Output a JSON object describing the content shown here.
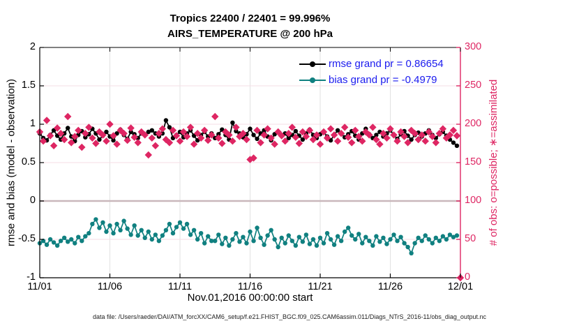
{
  "title": {
    "line1": "Tropics 22400 / 22401 = 99.996%",
    "line2": "AIRS_TEMPERATURE @ 200 hPa"
  },
  "legend": {
    "items": [
      {
        "label": "rmse grand pr = 0.86654",
        "color": "#000000",
        "marker": "circle"
      },
      {
        "label": "bias grand pr = -0.4979",
        "color": "#108080",
        "marker": "circle"
      }
    ],
    "text_color": "#1b1bef"
  },
  "footer": {
    "label": "data file: /Users/raeder/DAI/ATM_forcXX/CAM6_setup/f.e21.FHIST_BGC.f09_025.CAM6assim.011/Diags_NTrS_2016-11/obs_diag_output.nc"
  },
  "colors": {
    "crimson": "#de2663",
    "teal": "#108080",
    "black": "#000000",
    "legend_blue": "#1b1bef",
    "grid_vertical": "#e2e2e2",
    "grid_horizontal": "#f6dee6",
    "zero_line": "#c9b7bb"
  },
  "chart_data": {
    "type": "line",
    "title": "Tropics 22400 / 22401 = 99.996%",
    "subtitle": "AIRS_TEMPERATURE @ 200 hPa",
    "xlabel": "Nov.01,2016 00:00:00 start",
    "ylabel_left": "rmse and bias (model - observation)",
    "ylabel_right": "# of obs: o=possible; ∗=assimilated",
    "grid": true,
    "legend_position": "top-right-inside",
    "xlim_days": [
      0,
      30
    ],
    "ylim_left": [
      -1,
      2
    ],
    "ylim_right": [
      0,
      300
    ],
    "xticks": {
      "days": [
        0,
        5,
        10,
        15,
        20,
        25,
        30
      ],
      "labels": [
        "11/01",
        "11/06",
        "11/11",
        "11/16",
        "11/21",
        "11/26",
        "12/01"
      ]
    },
    "yticks_left": {
      "values": [
        -1,
        -0.5,
        0,
        0.5,
        1,
        1.5,
        2
      ],
      "labels": [
        "-1",
        "-0.5",
        "0",
        "0.5",
        "1",
        "1.5",
        "2"
      ]
    },
    "yticks_right": {
      "values": [
        0,
        50,
        100,
        150,
        200,
        250,
        300
      ],
      "labels": [
        "0",
        "50",
        "100",
        "150",
        "200",
        "250",
        "300"
      ]
    },
    "zero_line_value": 0,
    "time_start_day": 0,
    "time_step_days": 0.25,
    "series": [
      {
        "name": "rmse grand pr = 0.86654",
        "axis": "left",
        "marker": "circle",
        "line": true,
        "color": "#000000",
        "values": [
          0.88,
          0.82,
          0.79,
          0.86,
          0.92,
          0.85,
          0.8,
          0.88,
          0.95,
          0.84,
          0.78,
          0.86,
          0.91,
          0.83,
          0.87,
          0.94,
          0.88,
          0.8,
          0.85,
          0.9,
          0.84,
          0.79,
          0.88,
          0.93,
          0.86,
          0.81,
          0.9,
          0.87,
          0.82,
          0.88,
          0.86,
          0.9,
          0.92,
          0.88,
          0.84,
          0.88,
          1.05,
          0.96,
          0.82,
          0.86,
          0.9,
          0.83,
          0.88,
          0.92,
          0.85,
          0.79,
          0.86,
          0.9,
          0.84,
          0.88,
          0.82,
          0.87,
          0.93,
          0.86,
          0.8,
          1.02,
          0.91,
          0.88,
          0.83,
          0.87,
          0.94,
          0.86,
          0.81,
          0.88,
          0.92,
          0.84,
          0.79,
          0.87,
          0.9,
          0.85,
          0.88,
          0.82,
          0.86,
          0.91,
          0.85,
          0.8,
          0.88,
          0.93,
          0.86,
          0.82,
          0.87,
          0.9,
          0.84,
          0.79,
          0.86,
          0.92,
          0.88,
          0.83,
          0.87,
          0.91,
          0.85,
          0.8,
          0.88,
          0.94,
          0.87,
          0.82,
          0.86,
          0.9,
          0.84,
          0.88,
          0.92,
          0.86,
          0.81,
          0.87,
          0.91,
          0.85,
          0.8,
          0.86,
          0.89,
          0.84,
          0.88,
          0.92,
          0.86,
          0.82,
          0.87,
          0.9,
          0.85,
          0.8,
          0.76,
          0.72
        ]
      },
      {
        "name": "bias grand pr = -0.4979",
        "axis": "left",
        "marker": "circle",
        "line": true,
        "color": "#108080",
        "values": [
          -0.55,
          -0.52,
          -0.57,
          -0.5,
          -0.54,
          -0.58,
          -0.52,
          -0.48,
          -0.53,
          -0.5,
          -0.55,
          -0.47,
          -0.52,
          -0.46,
          -0.42,
          -0.3,
          -0.24,
          -0.35,
          -0.28,
          -0.4,
          -0.32,
          -0.42,
          -0.3,
          -0.38,
          -0.26,
          -0.36,
          -0.44,
          -0.32,
          -0.45,
          -0.38,
          -0.48,
          -0.4,
          -0.5,
          -0.44,
          -0.52,
          -0.45,
          -0.38,
          -0.3,
          -0.42,
          -0.34,
          -0.28,
          -0.36,
          -0.3,
          -0.44,
          -0.38,
          -0.5,
          -0.42,
          -0.55,
          -0.46,
          -0.52,
          -0.52,
          -0.44,
          -0.56,
          -0.48,
          -0.58,
          -0.5,
          -0.42,
          -0.53,
          -0.47,
          -0.55,
          -0.4,
          -0.52,
          -0.35,
          -0.48,
          -0.57,
          -0.45,
          -0.38,
          -0.5,
          -0.6,
          -0.48,
          -0.55,
          -0.45,
          -0.52,
          -0.58,
          -0.47,
          -0.53,
          -0.44,
          -0.56,
          -0.5,
          -0.58,
          -0.48,
          -0.55,
          -0.42,
          -0.5,
          -0.57,
          -0.46,
          -0.52,
          -0.4,
          -0.35,
          -0.45,
          -0.5,
          -0.43,
          -0.55,
          -0.47,
          -0.52,
          -0.58,
          -0.46,
          -0.53,
          -0.48,
          -0.56,
          -0.5,
          -0.44,
          -0.52,
          -0.47,
          -0.55,
          -0.6,
          -0.68,
          -0.55,
          -0.48,
          -0.52,
          -0.45,
          -0.5,
          -0.55,
          -0.48,
          -0.52,
          -0.46,
          -0.5,
          -0.44,
          -0.47,
          -0.45
        ]
      },
      {
        "name": "# of obs: o=possible; ∗=assimilated",
        "axis": "right",
        "marker": "diamond",
        "line": false,
        "color": "#de2663",
        "values": [
          190,
          178,
          205,
          185,
          172,
          195,
          188,
          180,
          210,
          176,
          184,
          192,
          170,
          188,
          196,
          182,
          175,
          190,
          186,
          178,
          200,
          185,
          174,
          192,
          188,
          179,
          195,
          183,
          176,
          190,
          186,
          160,
          182,
          172,
          188,
          194,
          180,
          176,
          192,
          185,
          178,
          190,
          184,
          196,
          174,
          188,
          182,
          192,
          179,
          186,
          210,
          182,
          175,
          190,
          186,
          178,
          196,
          184,
          188,
          180,
          154,
          156,
          192,
          176,
          186,
          194,
          182,
          174,
          190,
          185,
          178,
          188,
          196,
          183,
          175,
          190,
          184,
          192,
          180,
          186,
          174,
          190,
          182,
          194,
          186,
          178,
          188,
          196,
          183,
          176,
          192,
          184,
          178,
          190,
          186,
          196,
          180,
          174,
          188,
          182,
          194,
          186,
          178,
          190,
          184,
          176,
          192,
          188,
          180,
          186,
          178,
          190,
          184,
          176,
          188,
          194,
          182,
          186,
          192,
          185,
          0
        ]
      }
    ]
  }
}
